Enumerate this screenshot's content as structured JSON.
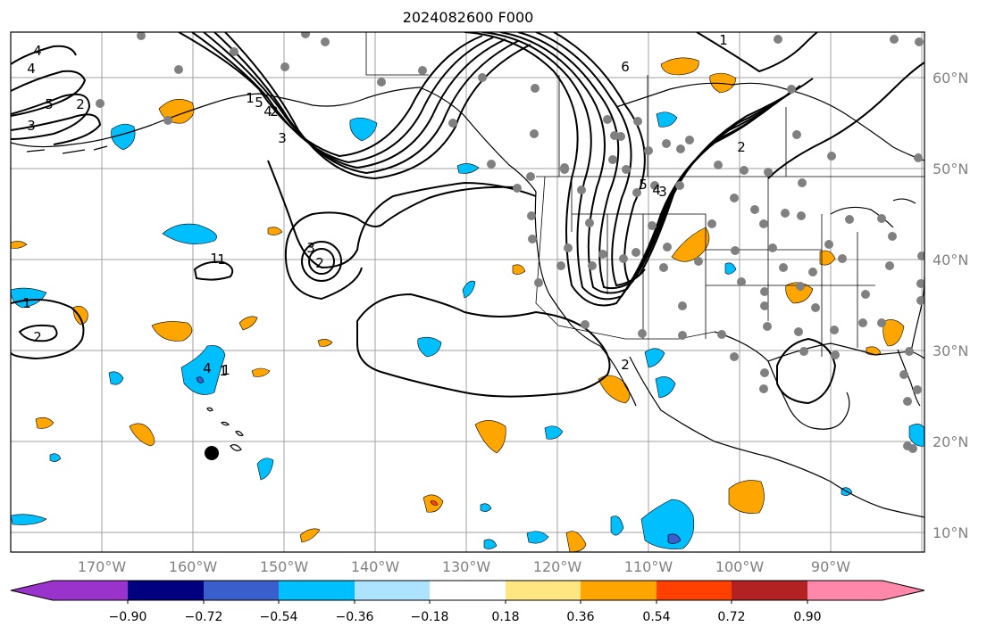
{
  "title": "2024082600 F000",
  "lat_labels": [
    "60°N",
    "50°N",
    "40°N",
    "30°N",
    "20°N",
    "10°N"
  ],
  "lon_labels": [
    "170°W",
    "160°W",
    "150°W",
    "140°W",
    "130°W",
    "120°W",
    "110°W",
    "100°W",
    "90°W"
  ],
  "colorbar": {
    "tick_labels": [
      "−0.90",
      "−0.72",
      "−0.54",
      "−0.36",
      "−0.18",
      "0.18",
      "0.36",
      "0.54",
      "0.72",
      "0.90"
    ],
    "colors": [
      "#9933cc",
      "#000080",
      "#3a5fcd",
      "#00bfff",
      "#aee3ff",
      "#ffffff",
      "#ffe680",
      "#ffa500",
      "#ff4000",
      "#b22222",
      "#ff88aa"
    ]
  },
  "contour_labels": [
    "4",
    "4",
    "5",
    "3",
    "2",
    "1",
    "5",
    "4",
    "3",
    "2",
    "1",
    "2",
    "1",
    "1",
    "2",
    "3",
    "4",
    "1",
    "6",
    "5",
    "4",
    "3",
    "2",
    "1",
    "2",
    "1"
  ],
  "hurricane_marker": {
    "color": "#000000"
  },
  "station_dot_color": "#808080"
}
